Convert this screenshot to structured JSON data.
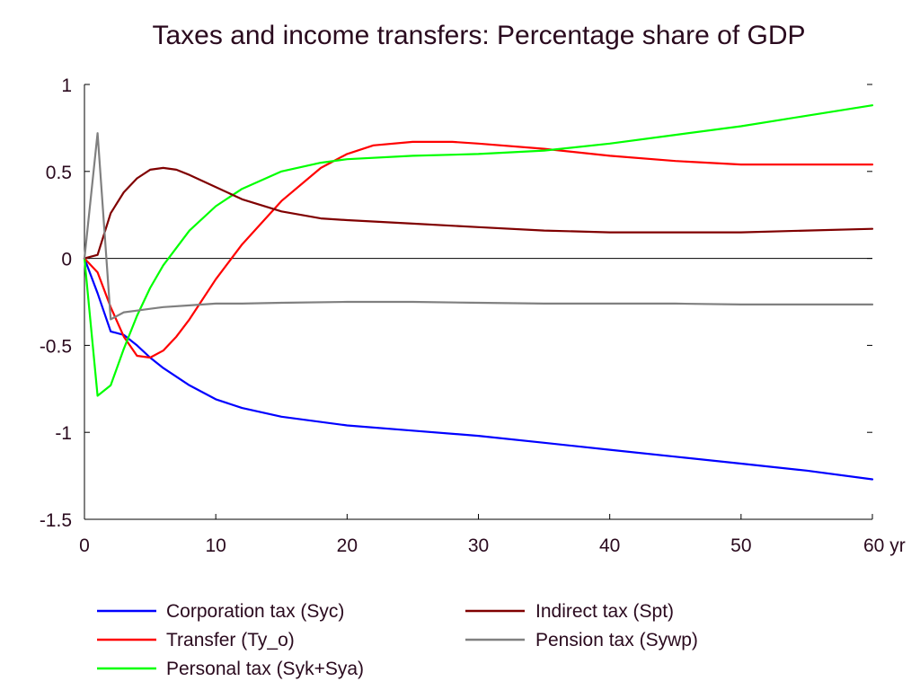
{
  "chart_data": {
    "type": "line",
    "title": "Taxes and income transfers: Percentage share of GDP",
    "xlabel": "",
    "ylabel": "",
    "xlim": [
      0,
      60
    ],
    "ylim": [
      -1.5,
      1
    ],
    "x_ticks": [
      0,
      10,
      20,
      30,
      40,
      50,
      60
    ],
    "x_tick_labels": [
      "0",
      "10",
      "20",
      "30",
      "40",
      "50",
      "60 yr"
    ],
    "y_ticks": [
      1,
      0.5,
      0,
      -0.5,
      -1,
      -1.5
    ],
    "y_tick_labels": [
      "1",
      "0.5",
      "0",
      "-0.5",
      "-1",
      "-1.5"
    ],
    "grid": false,
    "zero_line": true,
    "legend_position": "bottom",
    "series": [
      {
        "name": "Corporation tax (Syc)",
        "color": "#0000ff",
        "x": [
          0,
          1,
          2,
          3,
          4,
          5,
          6,
          8,
          10,
          12,
          15,
          20,
          25,
          30,
          35,
          40,
          45,
          50,
          55,
          60
        ],
        "values": [
          0,
          -0.2,
          -0.42,
          -0.44,
          -0.5,
          -0.57,
          -0.63,
          -0.73,
          -0.81,
          -0.86,
          -0.91,
          -0.96,
          -0.99,
          -1.02,
          -1.06,
          -1.1,
          -1.14,
          -1.18,
          -1.22,
          -1.27
        ]
      },
      {
        "name": "Transfer (Ty_o)",
        "color": "#ff0000",
        "x": [
          0,
          1,
          2,
          3,
          4,
          5,
          6,
          7,
          8,
          10,
          12,
          15,
          18,
          20,
          22,
          25,
          28,
          30,
          35,
          40,
          45,
          50,
          55,
          60
        ],
        "values": [
          0,
          -0.08,
          -0.28,
          -0.45,
          -0.56,
          -0.57,
          -0.53,
          -0.45,
          -0.35,
          -0.12,
          0.08,
          0.33,
          0.52,
          0.6,
          0.65,
          0.67,
          0.67,
          0.66,
          0.63,
          0.59,
          0.56,
          0.54,
          0.54,
          0.54
        ]
      },
      {
        "name": "Personal tax (Syk+Sya)",
        "color": "#00ff00",
        "x": [
          0,
          1,
          2,
          3,
          4,
          5,
          6,
          8,
          10,
          12,
          15,
          18,
          20,
          25,
          30,
          35,
          40,
          45,
          50,
          55,
          60
        ],
        "values": [
          0,
          -0.79,
          -0.73,
          -0.52,
          -0.33,
          -0.17,
          -0.04,
          0.16,
          0.3,
          0.4,
          0.5,
          0.55,
          0.57,
          0.59,
          0.6,
          0.62,
          0.66,
          0.71,
          0.76,
          0.82,
          0.88
        ]
      },
      {
        "name": "Indirect tax (Spt)",
        "color": "#800000",
        "x": [
          0,
          1,
          2,
          3,
          4,
          5,
          6,
          7,
          8,
          10,
          12,
          15,
          18,
          20,
          25,
          30,
          35,
          40,
          45,
          50,
          55,
          60
        ],
        "values": [
          0,
          0.02,
          0.26,
          0.38,
          0.46,
          0.51,
          0.52,
          0.51,
          0.48,
          0.41,
          0.34,
          0.27,
          0.23,
          0.22,
          0.2,
          0.18,
          0.16,
          0.15,
          0.15,
          0.15,
          0.16,
          0.17
        ]
      },
      {
        "name": "Pension tax (Sywp)",
        "color": "#808080",
        "x": [
          0,
          1,
          2,
          3,
          4,
          5,
          6,
          8,
          10,
          12,
          15,
          20,
          25,
          30,
          35,
          40,
          45,
          50,
          55,
          60
        ],
        "values": [
          0,
          0.72,
          -0.35,
          -0.31,
          -0.3,
          -0.29,
          -0.28,
          -0.27,
          -0.26,
          -0.26,
          -0.255,
          -0.25,
          -0.25,
          -0.255,
          -0.26,
          -0.26,
          -0.26,
          -0.265,
          -0.265,
          -0.265
        ]
      }
    ]
  }
}
